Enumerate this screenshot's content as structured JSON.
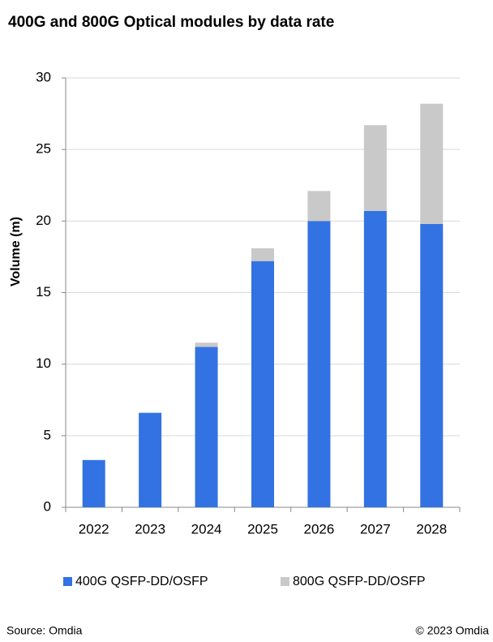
{
  "chart_data": {
    "type": "stacked_bar",
    "title": "400G and 800G Optical modules by data rate",
    "y_label": "Volume (m)",
    "categories": [
      "2022",
      "2023",
      "2024",
      "2025",
      "2026",
      "2027",
      "2028"
    ],
    "series": [
      {
        "name": "400G QSFP-DD/OSFP",
        "color": "#3272e2",
        "values": [
          3.3,
          6.6,
          11.2,
          17.2,
          20.0,
          20.7,
          19.8
        ]
      },
      {
        "name": "800G QSFP-DD/OSFP",
        "color": "#c9c9c9",
        "values": [
          0,
          0,
          0.3,
          0.9,
          2.1,
          6.0,
          8.4
        ]
      }
    ],
    "ylim": [
      0,
      30
    ],
    "yticks": [
      0,
      5,
      10,
      15,
      20,
      25,
      30
    ],
    "grid": true,
    "source": "Source: Omdia",
    "copyright": "© 2023 Omdia"
  }
}
